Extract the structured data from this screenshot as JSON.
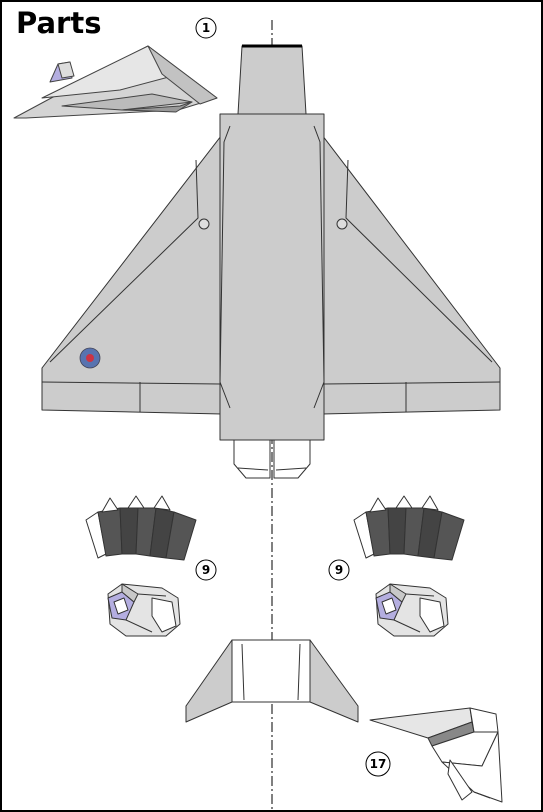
{
  "sheet": {
    "title": "Parts",
    "part_numbers": [
      "1",
      "9",
      "9",
      "17"
    ]
  },
  "colors": {
    "paper_grey": "#cccccc",
    "dark_panel": "#555555",
    "purple_detail": "#b4aee0",
    "roundel_blue": "#5873b0",
    "roundel_red": "#cc3344",
    "outline": "#333333"
  }
}
